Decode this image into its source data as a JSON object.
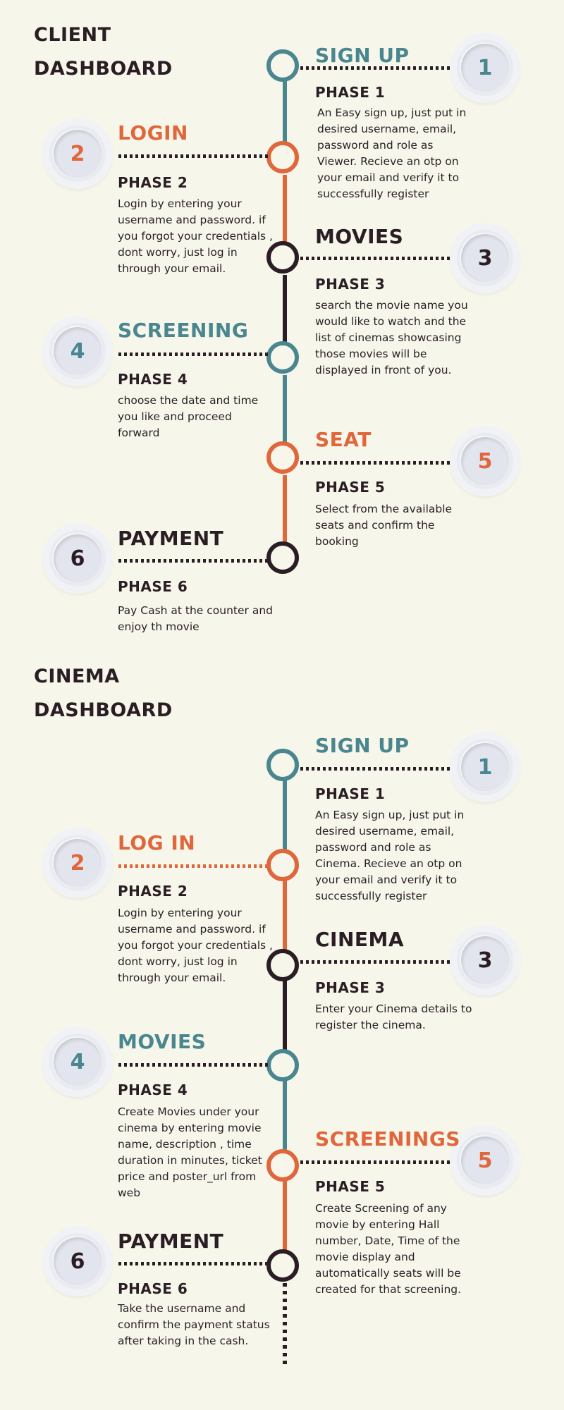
{
  "colors": {
    "background": "#f6f6ea",
    "teal": "#4a868f",
    "orange": "#e0673b",
    "dark": "#2a1e24"
  },
  "client": {
    "title_line1": "CLIENT",
    "title_line2": "DASHBOARD",
    "steps": [
      {
        "number": "1",
        "heading": "SIGN UP",
        "phase": "PHASE 1",
        "text": "An Easy sign up, just put in desired username, email, password and role as Viewer. Recieve an otp on your email and verify it to successfully register"
      },
      {
        "number": "2",
        "heading": "LOGIN",
        "phase": "PHASE 2",
        "text": "Login by entering your username and password. if you forgot your credentials , dont worry, just log in through your email."
      },
      {
        "number": "3",
        "heading": "MOVIES",
        "phase": "PHASE 3",
        "text": "search the movie name you would like to watch and the list of cinemas showcasing those movies will be displayed in front of you."
      },
      {
        "number": "4",
        "heading": "SCREENING",
        "phase": "PHASE 4",
        "text": "choose the date and time you like and proceed forward"
      },
      {
        "number": "5",
        "heading": "SEAT",
        "phase": "PHASE 5",
        "text": "Select from the available seats and confirm the booking"
      },
      {
        "number": "6",
        "heading": "PAYMENT",
        "phase": "PHASE 6",
        "text": "Pay Cash at the counter and enjoy th movie"
      }
    ]
  },
  "cinema": {
    "title_line1": "CINEMA",
    "title_line2": "DASHBOARD",
    "steps": [
      {
        "number": "1",
        "heading": "SIGN UP",
        "phase": "PHASE 1",
        "text": "An Easy sign up, just put in desired username, email, password and role as Cinema. Recieve an otp on your email and verify it to successfully register"
      },
      {
        "number": "2",
        "heading": "LOG IN",
        "phase": "PHASE 2",
        "text": "Login by entering your username and password. if you forgot your credentials , dont worry, just log in through your email."
      },
      {
        "number": "3",
        "heading": "CINEMA",
        "phase": "PHASE 3",
        "text": "Enter your Cinema details to register the cinema."
      },
      {
        "number": "4",
        "heading": "MOVIES",
        "phase": "PHASE 4",
        "text": "Create Movies under your cinema by entering movie name, description , time duration in minutes, ticket price and poster_url from web"
      },
      {
        "number": "5",
        "heading": "SCREENINGS",
        "phase": "PHASE 5",
        "text": "Create Screening of any movie by entering Hall number, Date, Time of the movie display and automatically seats will be created for that screening."
      },
      {
        "number": "6",
        "heading": "PAYMENT",
        "phase": "PHASE 6",
        "text": "Take the username and confirm the payment status after taking in the cash."
      }
    ]
  }
}
